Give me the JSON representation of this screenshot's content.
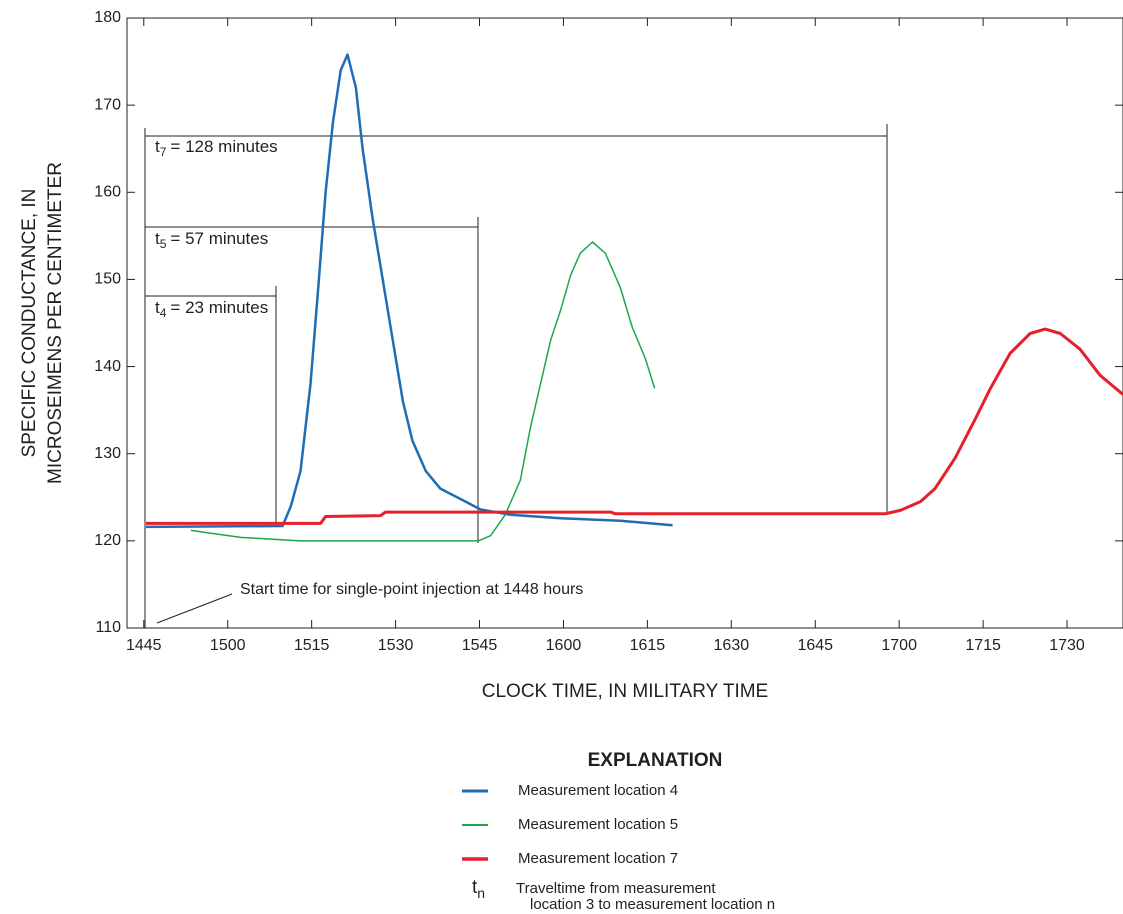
{
  "chart_data": {
    "type": "line",
    "xlabel": "CLOCK TIME, IN MILITARY TIME",
    "ylabel": [
      "SPECIFIC CONDUCTANCE, IN",
      "MICROSEIMENS PER CENTIMETER"
    ],
    "xlim": [
      882,
      1060
    ],
    "ylim": [
      110,
      180
    ],
    "xticks": [
      {
        "value": 885,
        "label": "1445"
      },
      {
        "value": 900,
        "label": "1500"
      },
      {
        "value": 915,
        "label": "1515"
      },
      {
        "value": 930,
        "label": "1530"
      },
      {
        "value": 945,
        "label": "1545"
      },
      {
        "value": 960,
        "label": "1600"
      },
      {
        "value": 975,
        "label": "1615"
      },
      {
        "value": 990,
        "label": "1630"
      },
      {
        "value": 1005,
        "label": "1645"
      },
      {
        "value": 1020,
        "label": "1700"
      },
      {
        "value": 1035,
        "label": "1715"
      },
      {
        "value": 1050,
        "label": "1730"
      }
    ],
    "yticks": [
      110,
      120,
      130,
      140,
      150,
      160,
      170,
      180
    ],
    "series": [
      {
        "name": "Measurement location 4",
        "color": "#1f6db4",
        "width": 2.5,
        "x": [
          885.4,
          909.8,
          911.3,
          913,
          914.8,
          916.3,
          917.5,
          918.8,
          920.2,
          921.4,
          922.9,
          924.1,
          925.9,
          927.7,
          929.5,
          931.3,
          933,
          935.4,
          938,
          941.6,
          945.2,
          950.5,
          959.5,
          970.2,
          979.5
        ],
        "values": [
          121.6,
          121.7,
          124,
          128,
          138,
          150,
          160,
          168,
          174,
          175.8,
          172,
          165,
          157,
          150,
          143,
          136,
          131.5,
          128,
          126,
          124.8,
          123.6,
          123,
          122.6,
          122.3,
          121.8
        ]
      },
      {
        "name": "Measurement location 5",
        "color": "#1ba84a",
        "width": 1.5,
        "x": [
          893.4,
          902.3,
          913,
          944.8,
          947,
          949.6,
          952.3,
          954.1,
          955.9,
          957.7,
          959.5,
          961.3,
          963,
          965.2,
          967.5,
          970.2,
          972.3,
          974.6,
          976.3
        ],
        "values": [
          121.2,
          120.4,
          120,
          120,
          120.6,
          123,
          127,
          133,
          138,
          143,
          146.5,
          150.5,
          153,
          154.3,
          153,
          149,
          144.5,
          141,
          137.5
        ]
      },
      {
        "name": "Measurement location 7",
        "color": "#e5202a",
        "width": 3,
        "x": [
          885.4,
          916.6,
          917.5,
          927.3,
          928.2,
          968.4,
          969.3,
          1017.5,
          1020.2,
          1023.8,
          1026.4,
          1030,
          1033.6,
          1036.3,
          1039.8,
          1043.4,
          1046.1,
          1048.8,
          1052.3,
          1055.9,
          1060
        ],
        "values": [
          122,
          122,
          122.8,
          122.9,
          123.3,
          123.3,
          123.1,
          123.1,
          123.5,
          124.5,
          126,
          129.5,
          134,
          137.5,
          141.5,
          143.8,
          144.3,
          143.8,
          142,
          139,
          136.8
        ]
      }
    ],
    "annotations": [
      {
        "symbol": "t",
        "subscript": "7",
        "text": "= 128 minutes"
      },
      {
        "symbol": "t",
        "subscript": "5",
        "text": "= 57 minutes"
      },
      {
        "symbol": "t",
        "subscript": "4",
        "text": "= 23 minutes"
      }
    ],
    "start_note": "Start time for single-point injection at 1448 hours",
    "legend_title": "EXPLANATION",
    "legend_note": {
      "symbol": "t",
      "subscript": "n",
      "lines": [
        "Traveltime from measurement",
        "location 3 to measurement location n"
      ]
    }
  }
}
